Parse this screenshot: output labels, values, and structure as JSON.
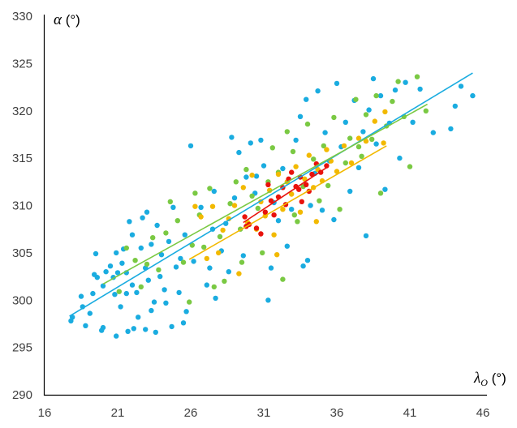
{
  "chart_data": {
    "type": "scatter",
    "xlabel_symbol": "λ",
    "xlabel_subscript": "O",
    "xlabel_unit": " (°)",
    "ylabel_symbol": "α",
    "ylabel_unit": " (°)",
    "xlim": [
      16,
      46
    ],
    "ylim": [
      290,
      330
    ],
    "xticks": [
      16,
      21,
      26,
      31,
      36,
      41,
      46
    ],
    "yticks": [
      290,
      295,
      300,
      305,
      310,
      315,
      320,
      325,
      330
    ],
    "grid": false,
    "legend": "none",
    "series": [
      {
        "color": "#1aace0",
        "trend": [
          [
            17.7,
            298.3
          ],
          [
            45.3,
            324.0
          ]
        ],
        "points": [
          [
            17.8,
            297.8
          ],
          [
            17.9,
            298.2
          ],
          [
            18.5,
            300.4
          ],
          [
            18.6,
            299.3
          ],
          [
            18.8,
            297.3
          ],
          [
            19.1,
            298.6
          ],
          [
            19.3,
            300.7
          ],
          [
            19.4,
            302.7
          ],
          [
            19.5,
            304.9
          ],
          [
            19.6,
            302.4
          ],
          [
            19.9,
            296.8
          ],
          [
            20.0,
            297.1
          ],
          [
            20.0,
            301.5
          ],
          [
            20.2,
            303.0
          ],
          [
            20.5,
            303.6
          ],
          [
            20.7,
            302.4
          ],
          [
            20.8,
            300.6
          ],
          [
            20.9,
            305.0
          ],
          [
            20.9,
            296.2
          ],
          [
            21.0,
            302.9
          ],
          [
            21.2,
            299.3
          ],
          [
            21.3,
            303.9
          ],
          [
            21.4,
            305.4
          ],
          [
            21.6,
            302.9
          ],
          [
            21.6,
            300.7
          ],
          [
            21.7,
            296.7
          ],
          [
            21.8,
            308.3
          ],
          [
            22.0,
            306.9
          ],
          [
            22.0,
            301.6
          ],
          [
            22.1,
            297.0
          ],
          [
            22.3,
            300.8
          ],
          [
            22.4,
            298.2
          ],
          [
            22.6,
            305.5
          ],
          [
            22.7,
            308.7
          ],
          [
            22.9,
            303.4
          ],
          [
            22.9,
            296.9
          ],
          [
            23.0,
            309.3
          ],
          [
            23.1,
            302.1
          ],
          [
            23.3,
            298.9
          ],
          [
            23.3,
            305.9
          ],
          [
            23.5,
            299.8
          ],
          [
            23.6,
            296.6
          ],
          [
            23.7,
            307.9
          ],
          [
            23.9,
            302.5
          ],
          [
            24.0,
            304.8
          ],
          [
            24.2,
            301.1
          ],
          [
            24.3,
            299.7
          ],
          [
            24.5,
            306.2
          ],
          [
            24.7,
            297.2
          ],
          [
            24.8,
            309.8
          ],
          [
            25.0,
            303.5
          ],
          [
            25.2,
            300.8
          ],
          [
            25.3,
            304.4
          ],
          [
            25.5,
            297.6
          ],
          [
            25.6,
            306.9
          ],
          [
            26.0,
            316.3
          ],
          [
            26.2,
            304.1
          ],
          [
            26.7,
            309.8
          ],
          [
            27.1,
            301.6
          ],
          [
            27.3,
            303.4
          ],
          [
            27.5,
            307.5
          ],
          [
            27.7,
            300.2
          ],
          [
            28.1,
            305.2
          ],
          [
            28.4,
            308.1
          ],
          [
            28.6,
            303.0
          ],
          [
            28.8,
            317.2
          ],
          [
            29.0,
            310.8
          ],
          [
            29.3,
            315.6
          ],
          [
            29.6,
            304.7
          ],
          [
            29.8,
            313.0
          ],
          [
            30.1,
            316.6
          ],
          [
            30.4,
            311.3
          ],
          [
            30.8,
            316.9
          ],
          [
            31.0,
            314.2
          ],
          [
            31.3,
            300.0
          ],
          [
            31.5,
            303.4
          ],
          [
            31.7,
            310.3
          ],
          [
            32.0,
            308.4
          ],
          [
            32.3,
            313.9
          ],
          [
            32.6,
            305.7
          ],
          [
            32.9,
            309.6
          ],
          [
            33.2,
            316.9
          ],
          [
            33.5,
            319.4
          ],
          [
            33.7,
            303.6
          ],
          [
            33.9,
            321.2
          ],
          [
            34.2,
            310.0
          ],
          [
            34.5,
            313.4
          ],
          [
            34.7,
            322.1
          ],
          [
            35.0,
            309.5
          ],
          [
            35.2,
            317.7
          ],
          [
            35.5,
            314.7
          ],
          [
            35.8,
            308.5
          ],
          [
            36.0,
            322.9
          ],
          [
            36.3,
            316.2
          ],
          [
            36.6,
            318.8
          ],
          [
            36.9,
            311.5
          ],
          [
            37.2,
            321.1
          ],
          [
            37.5,
            314.0
          ],
          [
            37.8,
            317.8
          ],
          [
            38.2,
            320.1
          ],
          [
            38.5,
            323.4
          ],
          [
            38.7,
            316.5
          ],
          [
            39.0,
            321.6
          ],
          [
            39.3,
            311.7
          ],
          [
            39.6,
            318.7
          ],
          [
            40.0,
            322.2
          ],
          [
            40.3,
            315.0
          ],
          [
            40.7,
            323.0
          ],
          [
            41.2,
            318.8
          ],
          [
            41.7,
            322.3
          ],
          [
            42.6,
            317.7
          ],
          [
            43.8,
            318.1
          ],
          [
            44.1,
            320.5
          ],
          [
            44.5,
            322.6
          ],
          [
            45.3,
            321.6
          ],
          [
            38.0,
            306.8
          ],
          [
            34.0,
            304.2
          ],
          [
            30.5,
            313.1
          ],
          [
            27.6,
            311.5
          ],
          [
            25.7,
            298.8
          ]
        ]
      },
      {
        "color": "#7ac943",
        "trend": [
          [
            20.0,
            301.7
          ],
          [
            42.2,
            320.7
          ]
        ],
        "points": [
          [
            21.1,
            300.9
          ],
          [
            21.6,
            305.5
          ],
          [
            22.2,
            304.2
          ],
          [
            22.6,
            301.4
          ],
          [
            23.0,
            303.8
          ],
          [
            23.4,
            306.6
          ],
          [
            23.8,
            303.2
          ],
          [
            24.3,
            307.1
          ],
          [
            24.6,
            310.4
          ],
          [
            25.1,
            308.4
          ],
          [
            25.5,
            304.0
          ],
          [
            25.9,
            299.8
          ],
          [
            26.3,
            311.3
          ],
          [
            26.6,
            309.0
          ],
          [
            26.9,
            305.6
          ],
          [
            27.3,
            311.8
          ],
          [
            27.6,
            301.4
          ],
          [
            28.0,
            306.7
          ],
          [
            28.3,
            302.0
          ],
          [
            28.7,
            310.2
          ],
          [
            29.1,
            312.5
          ],
          [
            29.4,
            307.5
          ],
          [
            29.8,
            313.8
          ],
          [
            30.2,
            311.0
          ],
          [
            30.6,
            309.7
          ],
          [
            30.9,
            305.0
          ],
          [
            31.3,
            312.5
          ],
          [
            31.6,
            316.1
          ],
          [
            32.0,
            313.5
          ],
          [
            32.3,
            302.2
          ],
          [
            32.6,
            317.8
          ],
          [
            33.0,
            315.7
          ],
          [
            33.3,
            308.3
          ],
          [
            33.7,
            312.0
          ],
          [
            34.0,
            318.6
          ],
          [
            34.4,
            314.9
          ],
          [
            34.8,
            310.5
          ],
          [
            35.1,
            316.3
          ],
          [
            35.4,
            312.1
          ],
          [
            35.8,
            319.3
          ],
          [
            36.2,
            309.6
          ],
          [
            36.6,
            314.5
          ],
          [
            36.9,
            317.1
          ],
          [
            37.3,
            321.2
          ],
          [
            37.7,
            315.2
          ],
          [
            38.0,
            319.6
          ],
          [
            38.4,
            317.0
          ],
          [
            38.7,
            321.6
          ],
          [
            39.0,
            311.3
          ],
          [
            39.4,
            318.4
          ],
          [
            39.8,
            321.0
          ],
          [
            40.2,
            323.1
          ],
          [
            40.6,
            319.4
          ],
          [
            41.0,
            314.1
          ],
          [
            41.5,
            323.6
          ],
          [
            42.1,
            320.0
          ],
          [
            26.1,
            305.8
          ],
          [
            29.5,
            304.0
          ],
          [
            33.1,
            309.0
          ],
          [
            37.5,
            316.2
          ]
        ]
      },
      {
        "color": "#f2b900",
        "trend": [
          [
            25.9,
            304.3
          ],
          [
            39.4,
            316.3
          ]
        ],
        "points": [
          [
            26.3,
            309.9
          ],
          [
            26.7,
            308.8
          ],
          [
            27.1,
            304.4
          ],
          [
            27.5,
            309.9
          ],
          [
            27.9,
            305.0
          ],
          [
            28.2,
            307.4
          ],
          [
            28.6,
            308.6
          ],
          [
            29.0,
            310.0
          ],
          [
            29.3,
            302.8
          ],
          [
            29.6,
            311.9
          ],
          [
            29.9,
            308.2
          ],
          [
            30.2,
            313.2
          ],
          [
            30.5,
            307.5
          ],
          [
            30.8,
            310.4
          ],
          [
            31.1,
            308.9
          ],
          [
            31.4,
            311.6
          ],
          [
            31.7,
            306.9
          ],
          [
            32.0,
            313.3
          ],
          [
            32.3,
            309.6
          ],
          [
            32.6,
            312.5
          ],
          [
            32.9,
            311.2
          ],
          [
            33.2,
            314.1
          ],
          [
            33.5,
            309.3
          ],
          [
            33.8,
            312.8
          ],
          [
            34.1,
            315.3
          ],
          [
            34.4,
            311.9
          ],
          [
            34.7,
            313.8
          ],
          [
            35.0,
            312.6
          ],
          [
            35.3,
            315.9
          ],
          [
            35.6,
            314.7
          ],
          [
            36.0,
            313.6
          ],
          [
            36.5,
            316.3
          ],
          [
            37.0,
            314.5
          ],
          [
            37.5,
            317.1
          ],
          [
            38.0,
            316.8
          ],
          [
            38.6,
            318.9
          ],
          [
            39.2,
            316.6
          ],
          [
            39.3,
            319.9
          ],
          [
            34.6,
            308.3
          ],
          [
            31.9,
            304.8
          ]
        ]
      },
      {
        "color": "#e8120c",
        "trend": [
          [
            29.6,
            308.2
          ],
          [
            35.4,
            314.1
          ]
        ],
        "points": [
          [
            29.7,
            308.8
          ],
          [
            29.8,
            307.8
          ],
          [
            30.5,
            307.6
          ],
          [
            30.8,
            307.0
          ],
          [
            31.1,
            309.3
          ],
          [
            31.3,
            312.2
          ],
          [
            31.5,
            310.5
          ],
          [
            32.0,
            310.9
          ],
          [
            32.3,
            311.9
          ],
          [
            32.5,
            310.1
          ],
          [
            32.9,
            313.5
          ],
          [
            33.2,
            312.0
          ],
          [
            33.4,
            311.7
          ],
          [
            33.6,
            310.4
          ],
          [
            33.9,
            312.2
          ],
          [
            34.3,
            313.3
          ],
          [
            34.6,
            314.4
          ],
          [
            34.9,
            313.5
          ],
          [
            35.3,
            314.2
          ],
          [
            30.0,
            308.0
          ],
          [
            31.7,
            309.0
          ],
          [
            32.7,
            312.8
          ],
          [
            33.5,
            313.0
          ],
          [
            34.1,
            311.5
          ]
        ]
      }
    ]
  }
}
